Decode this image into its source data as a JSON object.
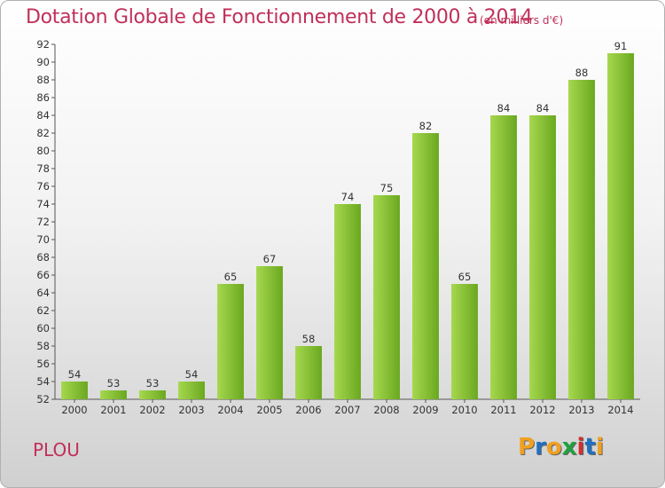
{
  "title": "Dotation Globale de Fonctionnement de 2000 à 2014",
  "subtitle": "(en milliers d'€)",
  "place": "PLOU",
  "brand": {
    "letters": [
      "P",
      "r",
      "o",
      "x",
      "i",
      "t",
      "i"
    ],
    "colors": [
      "#f0a020",
      "#2070c0",
      "#f0a020",
      "#20a040",
      "#d03030",
      "#2070c0",
      "#f0a020"
    ]
  },
  "colors": {
    "bar_light": "#a6d84e",
    "bar_dark": "#6aa820",
    "title": "#c0305a"
  },
  "chart_data": {
    "type": "bar",
    "title": "Dotation Globale de Fonctionnement de 2000 à 2014",
    "categories": [
      "2000",
      "2001",
      "2002",
      "2003",
      "2004",
      "2005",
      "2006",
      "2007",
      "2008",
      "2009",
      "2010",
      "2011",
      "2012",
      "2013",
      "2014"
    ],
    "values": [
      54,
      53,
      53,
      54,
      65,
      67,
      58,
      74,
      75,
      82,
      65,
      84,
      84,
      88,
      91
    ],
    "xlabel": "",
    "ylabel": "",
    "ylim": [
      52,
      92
    ],
    "yticks": [
      52,
      54,
      56,
      58,
      60,
      62,
      64,
      66,
      68,
      70,
      72,
      74,
      76,
      78,
      80,
      82,
      84,
      86,
      88,
      90,
      92
    ],
    "grid": false,
    "data_labels": true
  }
}
